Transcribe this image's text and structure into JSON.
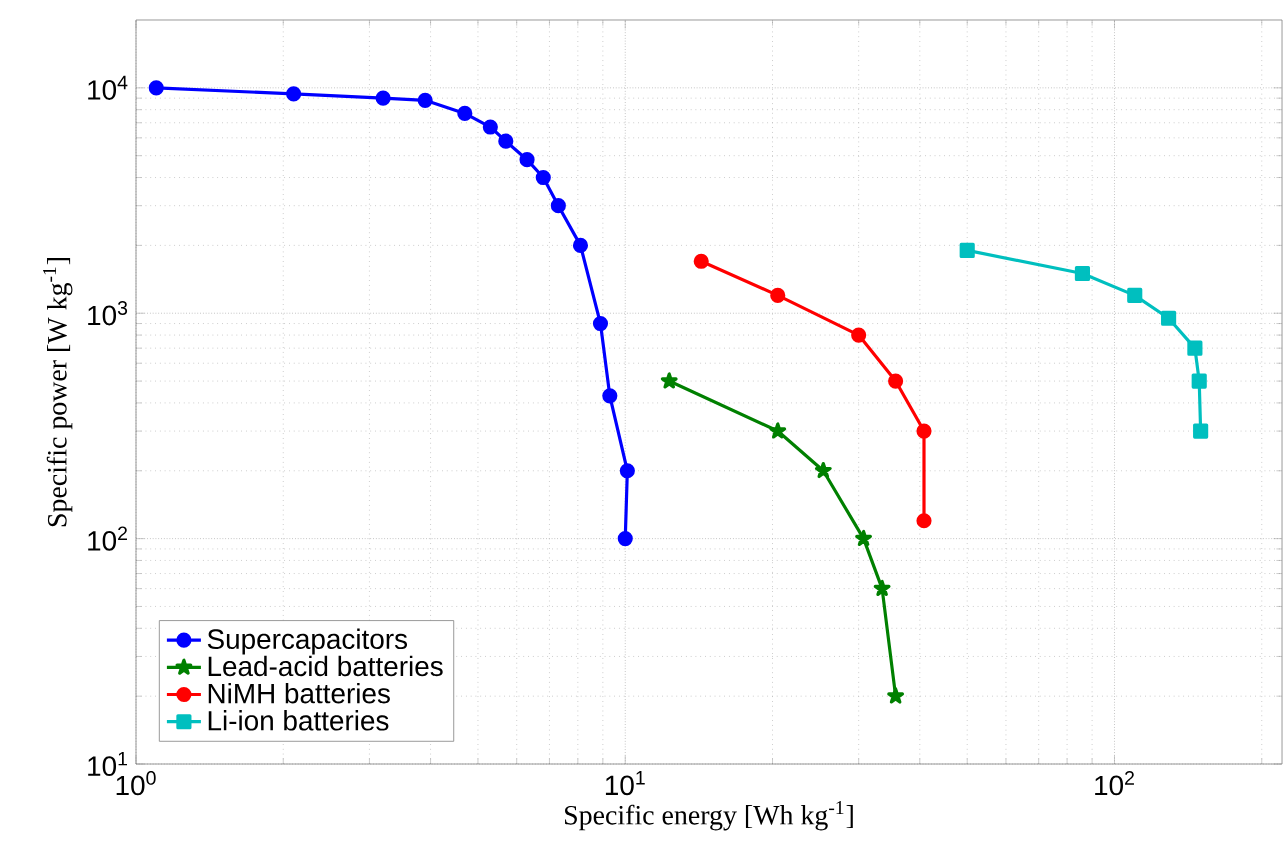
{
  "chart_data": {
    "type": "line",
    "xlabel": "Specific energy [Wh kg$^{-1}$]",
    "ylabel": "Specific power [W kg$^{-1}$]",
    "log": "xy",
    "grid": true,
    "legend": "bottom left",
    "xlim": [
      1,
      220
    ],
    "ylim": [
      10,
      20000
    ],
    "xticks": [
      {
        "value": 1,
        "label": "10$^{0}$"
      },
      {
        "value": 10,
        "label": "10$^{1}$"
      },
      {
        "value": 100,
        "label": "10$^{2}$"
      }
    ],
    "yticks": [
      {
        "value": 10,
        "label": "10$^{1}$"
      },
      {
        "value": 100,
        "label": "10$^{2}$"
      },
      {
        "value": 1000,
        "label": "10$^{3}$"
      },
      {
        "value": 10000,
        "label": "10$^{4}$"
      }
    ],
    "series": [
      {
        "name": "Supercapacitors",
        "color": "#0000ff",
        "marker": "circle",
        "x": [
          1.1,
          2.1,
          3.2,
          3.9,
          4.7,
          5.3,
          5.7,
          6.3,
          6.8,
          7.3,
          8.1,
          8.9,
          9.3,
          10.1,
          10
        ],
        "values": [
          10000,
          9400,
          9000,
          8800,
          7700,
          6700,
          5800,
          4800,
          4000,
          3000,
          2000,
          900,
          430,
          200,
          100
        ]
      },
      {
        "name": "Lead-acid batteries",
        "color": "#008000",
        "marker": "star",
        "x": [
          12.3,
          20.5,
          25.4,
          30.7,
          33.5,
          35.7
        ],
        "values": [
          500,
          300,
          200,
          100,
          60,
          20
        ]
      },
      {
        "name": "NiMH batteries",
        "color": "#ff0000",
        "marker": "circle",
        "x": [
          14.3,
          20.5,
          30,
          35.7,
          40.8,
          40.8
        ],
        "values": [
          1700,
          1200,
          800,
          500,
          300,
          120
        ]
      },
      {
        "name": "Li-ion batteries",
        "color": "#00bfbf",
        "marker": "square",
        "x": [
          50,
          86,
          110,
          129,
          146,
          149,
          150
        ],
        "values": [
          1900,
          1500,
          1200,
          950,
          700,
          500,
          300
        ]
      }
    ]
  }
}
